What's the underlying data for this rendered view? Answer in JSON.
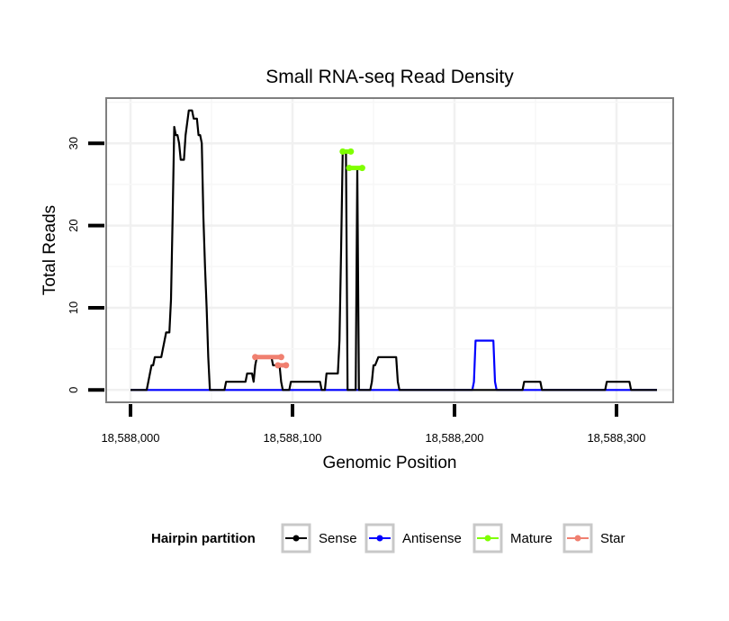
{
  "chart_data": {
    "type": "line",
    "title": "Small RNA-seq Read Density",
    "xlabel": "Genomic Position",
    "ylabel": "Total Reads",
    "xlim": [
      18587985,
      18588335
    ],
    "ylim": [
      -1.5,
      35.5
    ],
    "x_ticks": [
      18588000,
      18588100,
      18588200,
      18588300
    ],
    "x_tick_labels": [
      "18,588,000",
      "18,588,100",
      "18,588,200",
      "18,588,300"
    ],
    "y_ticks": [
      0,
      10,
      20,
      30
    ],
    "y_tick_labels": [
      "0",
      "10",
      "20",
      "30"
    ],
    "grid": true,
    "legend": {
      "title": "Hairpin partition",
      "position": "bottom",
      "items": [
        "Sense",
        "Antisense",
        "Mature",
        "Star"
      ]
    },
    "series": [
      {
        "name": "Sense",
        "color": "#000000",
        "kind": "line",
        "points": [
          [
            18588000,
            0
          ],
          [
            18588010,
            0
          ],
          [
            18588011,
            1
          ],
          [
            18588012,
            2
          ],
          [
            18588013,
            3
          ],
          [
            18588014,
            3
          ],
          [
            18588015,
            4
          ],
          [
            18588016,
            4
          ],
          [
            18588019,
            4
          ],
          [
            18588020,
            5
          ],
          [
            18588021,
            6
          ],
          [
            18588022,
            7
          ],
          [
            18588024,
            7
          ],
          [
            18588025,
            11
          ],
          [
            18588026,
            21
          ],
          [
            18588027,
            32
          ],
          [
            18588028,
            31
          ],
          [
            18588029,
            31
          ],
          [
            18588030,
            30
          ],
          [
            18588031,
            28
          ],
          [
            18588033,
            28
          ],
          [
            18588034,
            31
          ],
          [
            18588036,
            34
          ],
          [
            18588038,
            34
          ],
          [
            18588039,
            33
          ],
          [
            18588041,
            33
          ],
          [
            18588042,
            31
          ],
          [
            18588043,
            31
          ],
          [
            18588044,
            30
          ],
          [
            18588045,
            21
          ],
          [
            18588046,
            15
          ],
          [
            18588047,
            10
          ],
          [
            18588048,
            4
          ],
          [
            18588049,
            0
          ],
          [
            18588058,
            0
          ],
          [
            18588059,
            1
          ],
          [
            18588071,
            1
          ],
          [
            18588072,
            2
          ],
          [
            18588075,
            2
          ],
          [
            18588076,
            1
          ],
          [
            18588077,
            3
          ],
          [
            18588078,
            4
          ],
          [
            18588087,
            4
          ],
          [
            18588088,
            3
          ],
          [
            18588092,
            3
          ],
          [
            18588093,
            1
          ],
          [
            18588094,
            0
          ],
          [
            18588098,
            0
          ],
          [
            18588099,
            1
          ],
          [
            18588117,
            1
          ],
          [
            18588118,
            0
          ],
          [
            18588120,
            0
          ],
          [
            18588121,
            2
          ],
          [
            18588128,
            2
          ],
          [
            18588129,
            6
          ],
          [
            18588130,
            17
          ],
          [
            18588131,
            29
          ],
          [
            18588133,
            29
          ],
          [
            18588134,
            0
          ],
          [
            18588139,
            0
          ],
          [
            18588140,
            27
          ],
          [
            18588141,
            0
          ],
          [
            18588148,
            0
          ],
          [
            18588149,
            1
          ],
          [
            18588150,
            3
          ],
          [
            18588151,
            3
          ],
          [
            18588153,
            4
          ],
          [
            18588164,
            4
          ],
          [
            18588165,
            1
          ],
          [
            18588166,
            0
          ],
          [
            18588242,
            0
          ],
          [
            18588243,
            1
          ],
          [
            18588253,
            1
          ],
          [
            18588254,
            0
          ],
          [
            18588293,
            0
          ],
          [
            18588294,
            1
          ],
          [
            18588308,
            1
          ],
          [
            18588309,
            0
          ],
          [
            18588325,
            0
          ]
        ]
      },
      {
        "name": "Antisense",
        "color": "#0000ff",
        "kind": "line",
        "points": [
          [
            18588000,
            0
          ],
          [
            18588211,
            0
          ],
          [
            18588212,
            1
          ],
          [
            18588213,
            6
          ],
          [
            18588224,
            6
          ],
          [
            18588225,
            1
          ],
          [
            18588226,
            0
          ],
          [
            18588325,
            0
          ]
        ]
      },
      {
        "name": "Mature",
        "color": "#7fff00",
        "kind": "segments",
        "segments": [
          {
            "x": [
              18588131,
              18588136
            ],
            "y": 29
          },
          {
            "x": [
              18588135,
              18588143
            ],
            "y": 27
          }
        ]
      },
      {
        "name": "Star",
        "color": "#f08070",
        "kind": "segments",
        "segments": [
          {
            "x": [
              18588077,
              18588093
            ],
            "y": 4
          },
          {
            "x": [
              18588091,
              18588096
            ],
            "y": 3
          }
        ]
      }
    ]
  }
}
